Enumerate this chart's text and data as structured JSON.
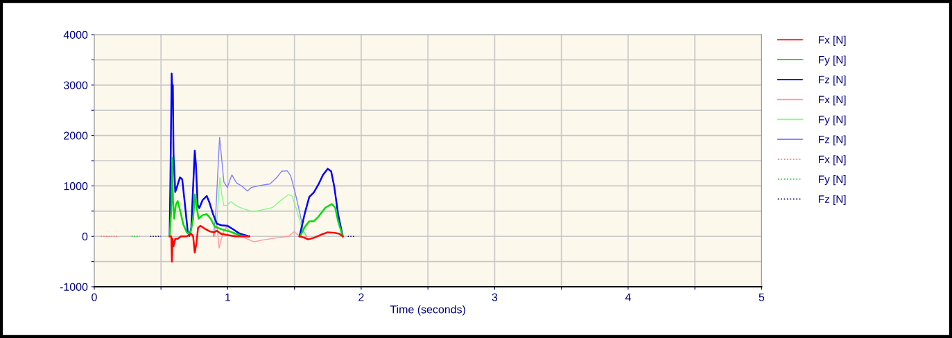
{
  "chart_data": {
    "type": "line",
    "xlabel": "Time (seconds)",
    "xlim": [
      0,
      5
    ],
    "ylim": [
      -1000,
      4000
    ],
    "xticks": [
      0,
      {
        "value": 0.5,
        "label": null
      },
      1,
      {
        "value": 1.5,
        "label": null
      },
      2,
      {
        "value": 2.5,
        "label": null
      },
      3,
      {
        "value": 3.5,
        "label": null
      },
      4,
      {
        "value": 4.5,
        "label": null
      },
      5
    ],
    "yticks": [
      -1000,
      {
        "value": -500,
        "label": null
      },
      0,
      {
        "value": 500,
        "label": null
      },
      1000,
      {
        "value": 1500,
        "label": null
      },
      2000,
      {
        "value": 2500,
        "label": null
      },
      3000,
      {
        "value": 3500,
        "label": null
      },
      4000
    ],
    "grid": true,
    "legend": "right",
    "line_style": "solid",
    "series": [
      {
        "name": "Fx [N]",
        "color": "#ff0000",
        "x": [
          0.565,
          0.577,
          0.582,
          0.587,
          0.594,
          0.607,
          0.625,
          0.65,
          0.693,
          0.727,
          0.741,
          0.753,
          0.765,
          0.778,
          0.795,
          0.829,
          0.863,
          0.898,
          0.919,
          0.949,
          0.988,
          1.057,
          1.152,
          1.3,
          1.538,
          1.576,
          1.602,
          1.645,
          1.697,
          1.749,
          1.801,
          1.836,
          1.862
        ],
        "values": [
          0,
          0,
          -500,
          -50,
          -200,
          -50,
          -50,
          0,
          0,
          50,
          0,
          -320,
          -150,
          170,
          210,
          150,
          100,
          80,
          110,
          50,
          30,
          0,
          0,
          null,
          0,
          -30,
          -60,
          -30,
          30,
          80,
          70,
          50,
          0
        ]
      },
      {
        "name": "Fy [N]",
        "color": "#00dd00",
        "x": [
          0.565,
          0.577,
          0.585,
          0.59,
          0.599,
          0.611,
          0.625,
          0.645,
          0.667,
          0.693,
          0.718,
          0.741,
          0.754,
          0.765,
          0.782,
          0.812,
          0.843,
          0.872,
          0.901,
          0.906,
          0.953,
          1.022,
          1.092,
          1.152,
          1.3,
          1.542,
          1.576,
          1.611,
          1.645,
          1.68,
          1.732,
          1.78,
          1.805,
          1.827,
          1.862
        ],
        "values": [
          0,
          530,
          1560,
          720,
          350,
          620,
          700,
          490,
          240,
          80,
          30,
          350,
          830,
          620,
          350,
          420,
          440,
          350,
          200,
          190,
          140,
          90,
          20,
          0,
          null,
          0,
          180,
          300,
          300,
          390,
          570,
          640,
          570,
          300,
          0
        ]
      },
      {
        "name": "Fz [N]",
        "color": "#0000ff",
        "x": [
          0.565,
          0.573,
          0.58,
          0.585,
          0.589,
          0.594,
          0.607,
          0.621,
          0.642,
          0.659,
          0.676,
          0.701,
          0.713,
          0.727,
          0.744,
          0.753,
          0.761,
          0.775,
          0.787,
          0.812,
          0.843,
          0.863,
          0.889,
          0.919,
          0.953,
          0.997,
          1.04,
          1.092,
          1.161,
          1.3,
          1.538,
          1.576,
          1.611,
          1.645,
          1.68,
          1.714,
          1.749,
          1.775,
          1.798,
          1.827,
          1.862
        ],
        "values": [
          30,
          1630,
          3230,
          2780,
          3000,
          1630,
          880,
          990,
          1170,
          1130,
          720,
          80,
          10,
          170,
          1170,
          1700,
          1450,
          620,
          560,
          720,
          800,
          670,
          450,
          250,
          220,
          210,
          140,
          50,
          0,
          null,
          0,
          440,
          780,
          870,
          1030,
          1220,
          1340,
          1290,
          990,
          440,
          0
        ]
      },
      {
        "name": "Fx [N]",
        "color": "#ff9999",
        "x": [
          0.901,
          0.919,
          0.927,
          0.936,
          0.95,
          0.971,
          0.988,
          1.014,
          1.057,
          1.126,
          1.196,
          1.265,
          1.369,
          1.455,
          1.498,
          1.516,
          1.542,
          1.59
        ],
        "values": [
          0,
          250,
          0,
          -230,
          -70,
          110,
          180,
          110,
          20,
          -30,
          -110,
          -70,
          -30,
          0,
          90,
          50,
          0,
          -10
        ]
      },
      {
        "name": "Fy [N]",
        "color": "#80ff80",
        "x": [
          0.901,
          0.919,
          0.941,
          0.957,
          0.971,
          0.997,
          1.022,
          1.057,
          1.109,
          1.152,
          1.187,
          1.265,
          1.334,
          1.386,
          1.455,
          1.481,
          1.516,
          1.55,
          1.585
        ],
        "values": [
          0,
          300,
          1170,
          800,
          610,
          620,
          690,
          620,
          550,
          520,
          490,
          530,
          570,
          690,
          830,
          800,
          530,
          210,
          0
        ]
      },
      {
        "name": "Fz [N]",
        "color": "#8080ff",
        "x": [
          0.893,
          0.91,
          0.939,
          0.953,
          0.971,
          0.997,
          1.031,
          1.066,
          1.109,
          1.147,
          1.178,
          1.247,
          1.317,
          1.369,
          1.403,
          1.446,
          1.472,
          1.507,
          1.542,
          1.567,
          1.59
        ],
        "values": [
          0,
          440,
          1960,
          1590,
          1080,
          970,
          1220,
          1060,
          990,
          900,
          970,
          1010,
          1040,
          1170,
          1290,
          1300,
          1200,
          850,
          440,
          110,
          0
        ]
      },
      {
        "name": "Fx [N]",
        "color": "#ff6666",
        "line_style": "dotted",
        "x": [
          0.05,
          0.18
        ],
        "values": [
          0,
          0
        ]
      },
      {
        "name": "Fy [N]",
        "color": "#00cc00",
        "line_style": "dotted",
        "x": [
          0.28,
          0.34
        ],
        "values": [
          0,
          0
        ]
      },
      {
        "name": "Fz [N]",
        "color": "#000080",
        "line_style": "dotted",
        "x": [
          0.42,
          0.5,
          null,
          1.9,
          1.95
        ],
        "values": [
          0,
          0,
          null,
          0,
          0
        ]
      }
    ]
  }
}
